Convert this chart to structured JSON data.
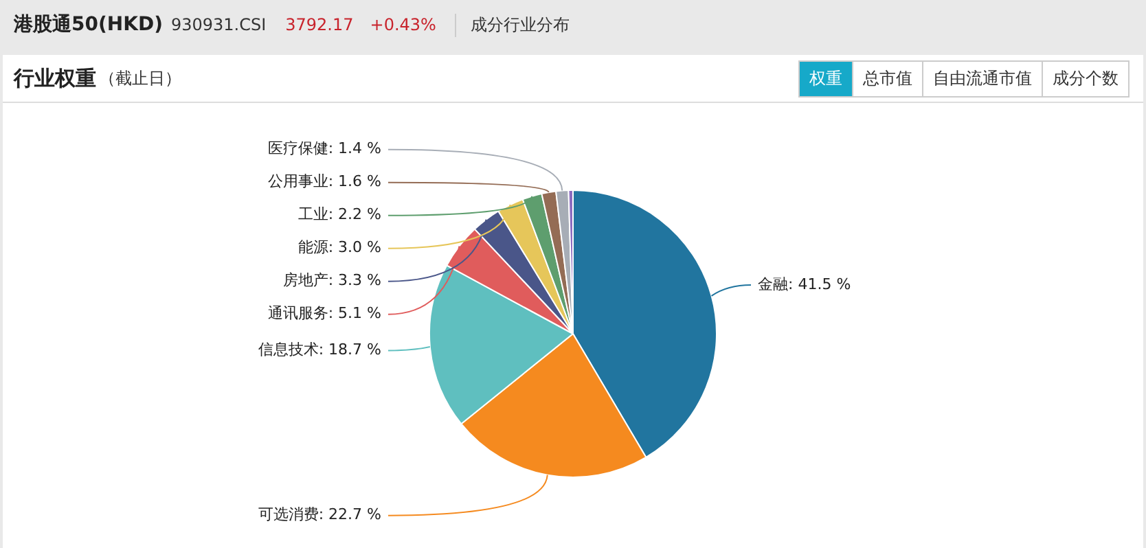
{
  "chart_data": {
    "type": "pie",
    "title": "港股通50(HKD)",
    "subtitle": "行业权重（截止日）",
    "annotations": [
      "930931.CSI",
      "3792.17",
      "+0.43%",
      "成分行业分布",
      "权重",
      "总市值",
      "自由流通市值",
      "成分个数"
    ],
    "categories": [
      "金融",
      "可选消费",
      "信息技术",
      "通讯服务",
      "房地产",
      "能源",
      "工业",
      "公用事业",
      "医疗保健",
      null
    ],
    "values": [
      41.5,
      22.7,
      18.7,
      5.1,
      3.3,
      3.0,
      2.2,
      1.6,
      1.4,
      0.5
    ],
    "value_labels": [
      "41.5 %",
      "22.7 %",
      "18.7 %",
      "5.1 %",
      "3.3 %",
      "3.0 %",
      "2.2 %",
      "1.6 %",
      "1.4 %",
      null
    ],
    "colors": [
      "#21759f",
      "#f58a1f",
      "#5fbfbf",
      "#e05c5c",
      "#4a5689",
      "#e6c65a",
      "#5e9e6e",
      "#946c55",
      "#a7adb6",
      "#8c6bbf"
    ],
    "legend": false
  }
}
